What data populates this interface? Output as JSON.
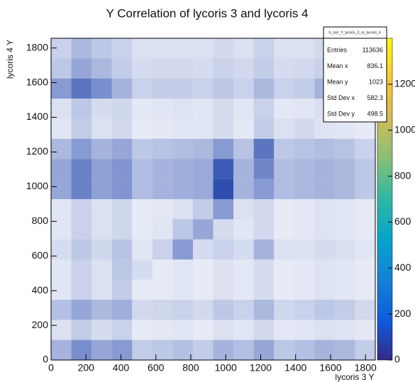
{
  "chart_data": {
    "type": "hist2d",
    "title": "Y Correlation of lycoris 3 and lycoris 4",
    "x_label": "lycoris 3 Y",
    "y_label": "lycoris 4 Y",
    "xlim": [
      0,
      1856
    ],
    "ylim": [
      0,
      1856
    ],
    "xticks": [
      0,
      200,
      400,
      600,
      800,
      1000,
      1200,
      1400,
      1600,
      1800
    ],
    "yticks": [
      0,
      200,
      400,
      600,
      800,
      1000,
      1200,
      1400,
      1600,
      1800
    ],
    "xbins": [
      0,
      116,
      232,
      348,
      464,
      580,
      696,
      812,
      928,
      1044,
      1160,
      1276,
      1392,
      1508,
      1624,
      1740,
      1856
    ],
    "ybins": [
      0,
      116,
      232,
      348,
      464,
      580,
      696,
      812,
      928,
      1044,
      1160,
      1276,
      1392,
      1508,
      1624,
      1740,
      1856
    ],
    "color": "#2e4fb0",
    "counts": [
      [
        30,
        45,
        35,
        40,
        20,
        22,
        25,
        20,
        30,
        25,
        35,
        22,
        25,
        30,
        28,
        20
      ],
      [
        12,
        20,
        14,
        18,
        8,
        9,
        10,
        8,
        12,
        10,
        15,
        9,
        10,
        12,
        11,
        9
      ],
      [
        25,
        35,
        28,
        32,
        15,
        16,
        18,
        15,
        22,
        18,
        28,
        16,
        18,
        22,
        20,
        15
      ],
      [
        10,
        18,
        12,
        20,
        8,
        8,
        10,
        8,
        12,
        9,
        14,
        8,
        9,
        11,
        10,
        8
      ],
      [
        10,
        18,
        12,
        22,
        14,
        8,
        10,
        8,
        12,
        9,
        14,
        8,
        9,
        11,
        10,
        8
      ],
      [
        14,
        22,
        16,
        24,
        10,
        18,
        40,
        14,
        18,
        14,
        30,
        12,
        12,
        14,
        13,
        10
      ],
      [
        10,
        18,
        12,
        16,
        8,
        10,
        22,
        35,
        14,
        10,
        15,
        8,
        9,
        11,
        10,
        8
      ],
      [
        10,
        18,
        12,
        16,
        8,
        9,
        12,
        20,
        40,
        12,
        15,
        8,
        9,
        11,
        10,
        8
      ],
      [
        35,
        50,
        38,
        42,
        26,
        30,
        32,
        34,
        70,
        30,
        40,
        26,
        28,
        30,
        28,
        22
      ],
      [
        35,
        50,
        38,
        42,
        26,
        30,
        32,
        34,
        65,
        30,
        48,
        26,
        28,
        30,
        28,
        22
      ],
      [
        28,
        40,
        30,
        35,
        22,
        24,
        26,
        28,
        40,
        24,
        55,
        22,
        24,
        26,
        24,
        18
      ],
      [
        10,
        20,
        12,
        15,
        8,
        9,
        10,
        10,
        14,
        9,
        20,
        12,
        15,
        11,
        10,
        8
      ],
      [
        12,
        22,
        14,
        16,
        9,
        10,
        11,
        10,
        14,
        10,
        18,
        9,
        10,
        13,
        11,
        9
      ],
      [
        40,
        55,
        45,
        30,
        18,
        20,
        20,
        18,
        22,
        18,
        28,
        18,
        20,
        30,
        25,
        20
      ],
      [
        22,
        35,
        28,
        20,
        14,
        15,
        15,
        14,
        18,
        15,
        20,
        14,
        15,
        18,
        18,
        14
      ],
      [
        18,
        28,
        22,
        18,
        12,
        12,
        12,
        12,
        15,
        12,
        18,
        12,
        12,
        15,
        15,
        12
      ]
    ],
    "zlim": [
      0,
      1400
    ],
    "zticks": [
      0,
      200,
      400,
      600,
      800,
      1000,
      1200
    ],
    "palette": [
      "#352a87",
      "#0f5cdd",
      "#1481d6",
      "#06a4ca",
      "#2eb7a4",
      "#87bf77",
      "#d1bb59",
      "#fec832",
      "#f9fb0e"
    ],
    "stats": {
      "name": "h_corr_Y_lycoris_3_vs_lycoris_4",
      "rows": [
        [
          "Entries",
          "113636"
        ],
        [
          "Mean x",
          "836.1"
        ],
        [
          "Mean y",
          "1023"
        ],
        [
          "Std Dev x",
          "582.3"
        ],
        [
          "Std Dev y",
          "498.5"
        ]
      ]
    }
  }
}
